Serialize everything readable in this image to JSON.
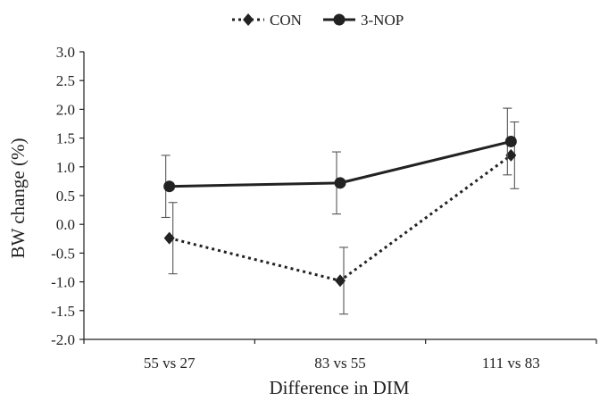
{
  "chart_data": {
    "type": "line",
    "title": "",
    "xlabel": "Difference in DIM",
    "ylabel": "BW change (%)",
    "categories": [
      "55 vs 27",
      "83 vs 55",
      "111 vs 83"
    ],
    "ylim": [
      -2.0,
      3.0
    ],
    "yticks": [
      "3.0",
      "2.5",
      "2.0",
      "1.5",
      "1.0",
      "0.5",
      "0.0",
      "-0.5",
      "-1.0",
      "-1.5",
      "-2.0"
    ],
    "ytick_values": [
      3.0,
      2.5,
      2.0,
      1.5,
      1.0,
      0.5,
      0.0,
      -0.5,
      -1.0,
      -1.5,
      -2.0
    ],
    "grid": false,
    "legend_position": "top-center",
    "series": [
      {
        "name": "CON",
        "values": [
          -0.24,
          -0.98,
          1.2
        ],
        "error": [
          0.62,
          0.58,
          0.58
        ],
        "line_style": "dotted",
        "marker": "diamond",
        "color": "#222222"
      },
      {
        "name": "3-NOP",
        "values": [
          0.66,
          0.72,
          1.44
        ],
        "error": [
          0.54,
          0.54,
          0.58
        ],
        "line_style": "solid",
        "marker": "circle",
        "color": "#222222"
      }
    ]
  }
}
